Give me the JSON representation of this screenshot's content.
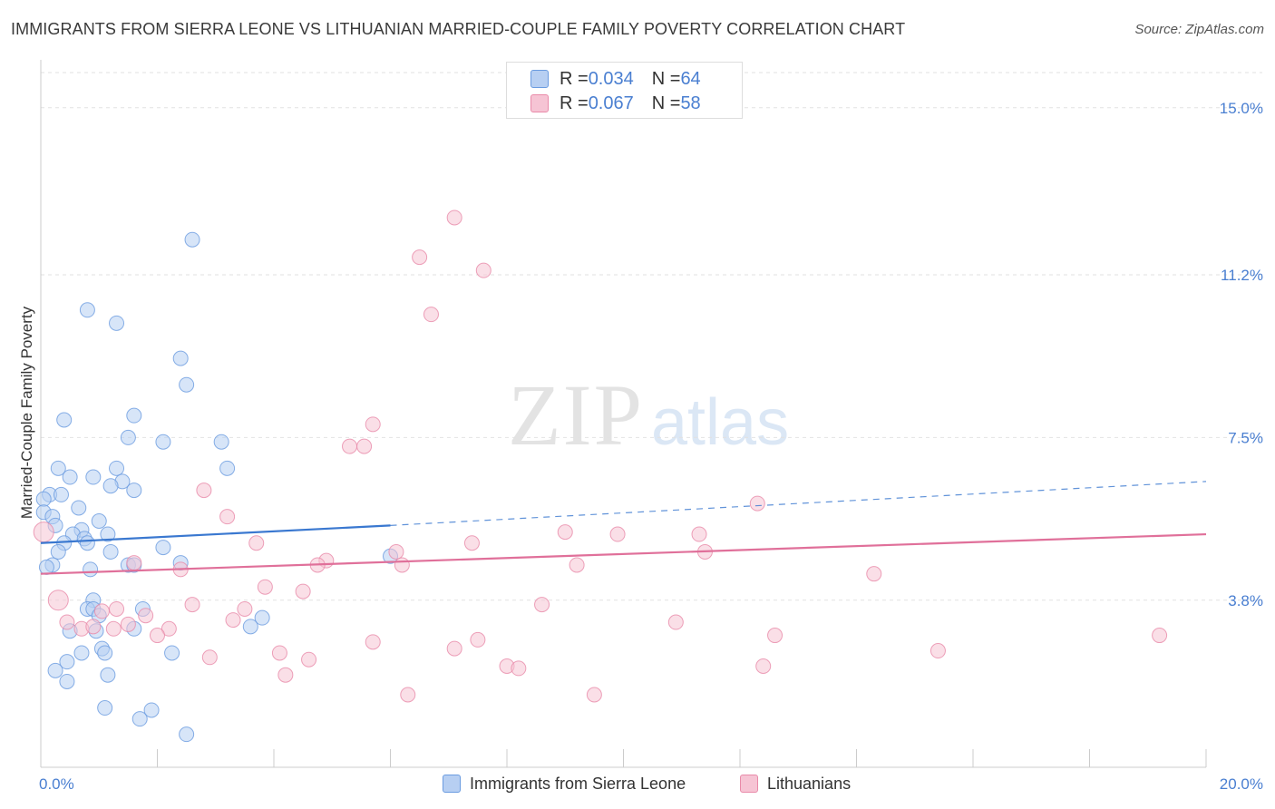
{
  "title": "IMMIGRANTS FROM SIERRA LEONE VS LITHUANIAN MARRIED-COUPLE FAMILY POVERTY CORRELATION CHART",
  "source": "Source: ZipAtlas.com",
  "watermark": {
    "zip": "ZIP",
    "atlas": "atlas"
  },
  "colors": {
    "blue": "#6a9be0",
    "blue_fill": "#b7cff2",
    "blue_line": "#3a78d0",
    "pink": "#e98aa9",
    "pink_fill": "#f6c4d4",
    "pink_line": "#e0709a",
    "tick_label": "#4a7fd1",
    "grid": "#e2e2e2"
  },
  "legend_top": [
    {
      "r_label": "R = ",
      "r_value": "0.034",
      "n_label": "N = ",
      "n_value": "64",
      "color": "blue"
    },
    {
      "r_label": "R = ",
      "r_value": "0.067",
      "n_label": "N = ",
      "n_value": "58",
      "color": "pink"
    }
  ],
  "legend_bottom": [
    {
      "label": "Immigrants from Sierra Leone",
      "color": "blue"
    },
    {
      "label": "Lithuanians",
      "color": "pink"
    }
  ],
  "chart_data": {
    "type": "scatter",
    "title": "IMMIGRANTS FROM SIERRA LEONE VS LITHUANIAN MARRIED-COUPLE FAMILY POVERTY CORRELATION CHART",
    "xlabel": "",
    "ylabel": "Married-Couple Family Poverty",
    "xlim": [
      0,
      20
    ],
    "ylim": [
      0,
      15.8
    ],
    "x_tick_labels": [
      {
        "value": 0,
        "label": "0.0%"
      },
      {
        "value": 20,
        "label": "20.0%"
      }
    ],
    "y_tick_labels": [
      {
        "value": 3.8,
        "label": "3.8%"
      },
      {
        "value": 7.5,
        "label": "7.5%"
      },
      {
        "value": 11.2,
        "label": "11.2%"
      },
      {
        "value": 15.0,
        "label": "15.0%"
      }
    ],
    "grid": true,
    "legend_position": "top-center",
    "series": [
      {
        "name": "Immigrants from Sierra Leone",
        "color": "blue",
        "trend": {
          "x_solid": [
            0,
            6
          ],
          "y_solid": [
            5.1,
            5.5
          ],
          "x_dashed": [
            6,
            20
          ],
          "y_dashed": [
            5.5,
            6.5
          ]
        },
        "points": [
          [
            2.6,
            12.0
          ],
          [
            0.8,
            10.4
          ],
          [
            1.3,
            10.1
          ],
          [
            2.4,
            9.3
          ],
          [
            2.5,
            8.7
          ],
          [
            1.6,
            8.0
          ],
          [
            0.4,
            7.9
          ],
          [
            1.5,
            7.5
          ],
          [
            2.1,
            7.4
          ],
          [
            3.1,
            7.4
          ],
          [
            0.3,
            6.8
          ],
          [
            1.3,
            6.8
          ],
          [
            3.2,
            6.8
          ],
          [
            0.5,
            6.6
          ],
          [
            0.9,
            6.6
          ],
          [
            1.4,
            6.5
          ],
          [
            1.2,
            6.4
          ],
          [
            1.6,
            6.3
          ],
          [
            0.15,
            6.2
          ],
          [
            0.35,
            6.2
          ],
          [
            0.05,
            6.1
          ],
          [
            0.65,
            5.9
          ],
          [
            0.05,
            5.8
          ],
          [
            0.2,
            5.7
          ],
          [
            0.25,
            5.5
          ],
          [
            1.0,
            5.6
          ],
          [
            0.7,
            5.4
          ],
          [
            0.55,
            5.3
          ],
          [
            0.75,
            5.2
          ],
          [
            1.15,
            5.3
          ],
          [
            0.4,
            5.1
          ],
          [
            0.8,
            5.1
          ],
          [
            2.1,
            5.0
          ],
          [
            1.2,
            4.9
          ],
          [
            0.3,
            4.9
          ],
          [
            6.0,
            4.8
          ],
          [
            0.2,
            4.6
          ],
          [
            0.1,
            4.55
          ],
          [
            1.5,
            4.6
          ],
          [
            1.6,
            4.6
          ],
          [
            2.4,
            4.65
          ],
          [
            0.85,
            4.5
          ],
          [
            0.9,
            3.8
          ],
          [
            0.8,
            3.6
          ],
          [
            0.9,
            3.6
          ],
          [
            1.75,
            3.6
          ],
          [
            1.0,
            3.45
          ],
          [
            3.8,
            3.4
          ],
          [
            3.6,
            3.2
          ],
          [
            1.6,
            3.15
          ],
          [
            0.5,
            3.1
          ],
          [
            0.95,
            3.1
          ],
          [
            1.05,
            2.7
          ],
          [
            1.1,
            2.6
          ],
          [
            0.7,
            2.6
          ],
          [
            2.25,
            2.6
          ],
          [
            0.45,
            2.4
          ],
          [
            1.15,
            2.1
          ],
          [
            0.45,
            1.95
          ],
          [
            1.1,
            1.35
          ],
          [
            1.9,
            1.3
          ],
          [
            1.7,
            1.1
          ],
          [
            2.5,
            0.75
          ],
          [
            0.25,
            2.2
          ]
        ]
      },
      {
        "name": "Lithuanians",
        "color": "pink",
        "trend": {
          "x": [
            0,
            20
          ],
          "y": [
            4.4,
            5.3
          ]
        },
        "points": [
          [
            7.1,
            12.5
          ],
          [
            6.5,
            11.6
          ],
          [
            7.6,
            11.3
          ],
          [
            6.7,
            10.3
          ],
          [
            5.7,
            7.8
          ],
          [
            5.3,
            7.3
          ],
          [
            5.55,
            7.3
          ],
          [
            2.8,
            6.3
          ],
          [
            3.2,
            5.7
          ],
          [
            12.3,
            6.0
          ],
          [
            9.0,
            5.35
          ],
          [
            9.9,
            5.3
          ],
          [
            11.3,
            5.3
          ],
          [
            3.7,
            5.1
          ],
          [
            7.4,
            5.1
          ],
          [
            6.1,
            4.9
          ],
          [
            11.4,
            4.9
          ],
          [
            1.6,
            4.65
          ],
          [
            4.9,
            4.7
          ],
          [
            4.75,
            4.6
          ],
          [
            6.2,
            4.6
          ],
          [
            9.2,
            4.6
          ],
          [
            2.4,
            4.5
          ],
          [
            14.3,
            4.4
          ],
          [
            3.85,
            4.1
          ],
          [
            4.5,
            4.0
          ],
          [
            0.3,
            3.8
          ],
          [
            2.6,
            3.7
          ],
          [
            8.6,
            3.7
          ],
          [
            3.5,
            3.6
          ],
          [
            1.05,
            3.55
          ],
          [
            1.3,
            3.6
          ],
          [
            1.8,
            3.45
          ],
          [
            3.3,
            3.35
          ],
          [
            10.9,
            3.3
          ],
          [
            1.5,
            3.25
          ],
          [
            0.45,
            3.3
          ],
          [
            2.2,
            3.15
          ],
          [
            1.25,
            3.15
          ],
          [
            0.7,
            3.15
          ],
          [
            0.9,
            3.2
          ],
          [
            2.0,
            3.0
          ],
          [
            12.6,
            3.0
          ],
          [
            19.2,
            3.0
          ],
          [
            5.7,
            2.85
          ],
          [
            7.5,
            2.9
          ],
          [
            7.1,
            2.7
          ],
          [
            15.4,
            2.65
          ],
          [
            4.1,
            2.6
          ],
          [
            2.9,
            2.5
          ],
          [
            4.6,
            2.45
          ],
          [
            8.0,
            2.3
          ],
          [
            8.2,
            2.25
          ],
          [
            12.4,
            2.3
          ],
          [
            4.2,
            2.1
          ],
          [
            6.3,
            1.65
          ],
          [
            9.5,
            1.65
          ],
          [
            0.05,
            5.35
          ]
        ]
      }
    ]
  }
}
